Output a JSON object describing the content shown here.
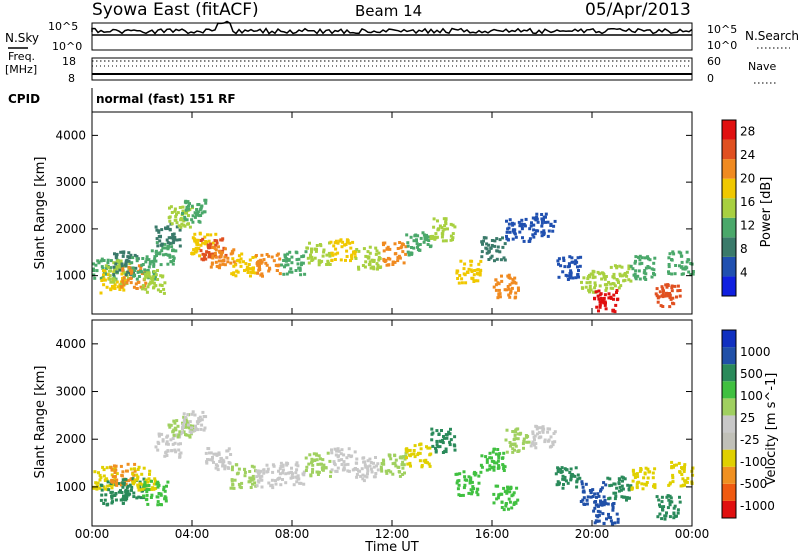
{
  "header": {
    "station": "Syowa East (fitACF)",
    "beam": "Beam 14",
    "date": "05/Apr/2013"
  },
  "top_panels": {
    "nsky_label": "N.Sky",
    "nsearch_label": "N.Search",
    "noise_ticks_left": [
      "10^5",
      "10^0"
    ],
    "noise_ticks_right": [
      "10^5",
      "10^0"
    ],
    "freq_label": "Freq.",
    "freq_unit": "[MHz]",
    "freq_ticks": [
      "18",
      "8"
    ],
    "nave_label": "Nave",
    "nave_ticks": [
      "60",
      "0"
    ],
    "cpid_label": "CPID",
    "cpid_value": "normal (fast) 151 RF"
  },
  "colors": {
    "power": [
      "#1020e0",
      "#2050b0",
      "#3a7a6a",
      "#4aa86a",
      "#a8d040",
      "#f0c800",
      "#f08a20",
      "#e05020",
      "#e01010"
    ],
    "velocity": [
      "#e01010",
      "#f05a10",
      "#f09020",
      "#e0d000",
      "#c0c0b8",
      "#c8c8c8",
      "#a0d060",
      "#40c040",
      "#2a8a5a",
      "#2050a8",
      "#1030c0"
    ]
  },
  "chart_data": [
    {
      "type": "heatmap",
      "title": "",
      "xlabel": "",
      "ylabel": "Slant Range [km]",
      "x_ticks": [
        "00:00",
        "04:00",
        "08:00",
        "12:00",
        "16:00",
        "20:00",
        "00:00"
      ],
      "xlim": [
        0,
        24
      ],
      "ylim": [
        180,
        4500
      ],
      "y_ticks": [
        1000,
        2000,
        3000,
        4000
      ],
      "colorbar": {
        "label": "Power [dB]",
        "ticks": [
          "4",
          "8",
          "12",
          "16",
          "20",
          "24",
          "28"
        ],
        "range": [
          0,
          30
        ]
      },
      "grid": false,
      "series": [
        {
          "points": [
            [
              0.5,
              1200,
              10
            ],
            [
              0.8,
              900,
              18
            ],
            [
              1.0,
              1100,
              14
            ],
            [
              1.3,
              1300,
              8
            ],
            [
              1.6,
              1000,
              22
            ],
            [
              2.0,
              1200,
              12
            ],
            [
              2.4,
              900,
              16
            ],
            [
              2.8,
              1500,
              10
            ],
            [
              3.0,
              1900,
              8
            ],
            [
              3.5,
              2300,
              14
            ],
            [
              4.0,
              2400,
              10
            ],
            [
              4.4,
              1700,
              18
            ],
            [
              4.8,
              1600,
              24
            ],
            [
              5.2,
              1400,
              20
            ],
            [
              6.0,
              1250,
              18
            ],
            [
              7.0,
              1250,
              22
            ],
            [
              8.0,
              1300,
              12
            ],
            [
              9.0,
              1500,
              16
            ],
            [
              10.0,
              1600,
              18
            ],
            [
              11.0,
              1400,
              14
            ],
            [
              12.0,
              1500,
              20
            ],
            [
              13.0,
              1700,
              12
            ],
            [
              14.0,
              2000,
              16
            ],
            [
              15.0,
              1100,
              18
            ],
            [
              16.0,
              1600,
              8
            ],
            [
              16.5,
              800,
              20
            ],
            [
              17.0,
              2000,
              6
            ],
            [
              18.0,
              2100,
              4
            ],
            [
              19.0,
              1200,
              6
            ],
            [
              20.0,
              900,
              14
            ],
            [
              20.5,
              500,
              28
            ],
            [
              21.0,
              1000,
              16
            ],
            [
              22.0,
              1200,
              12
            ],
            [
              23.0,
              600,
              24
            ],
            [
              23.5,
              1300,
              10
            ]
          ]
        }
      ]
    },
    {
      "type": "heatmap",
      "title": "",
      "xlabel": "Time UT",
      "ylabel": "Slant Range [km]",
      "x_ticks": [
        "00:00",
        "04:00",
        "08:00",
        "12:00",
        "16:00",
        "20:00",
        "00:00"
      ],
      "xlim": [
        0,
        24
      ],
      "ylim": [
        180,
        4500
      ],
      "y_ticks": [
        1000,
        2000,
        3000,
        4000
      ],
      "colorbar": {
        "label": "Velocity [m s^-1]",
        "ticks": [
          "1000",
          "500",
          "100",
          "25",
          "-25",
          "-100",
          "-500",
          "-1000"
        ]
      },
      "grid": false,
      "series": [
        {
          "points": [
            [
              0.5,
              1200,
              -200
            ],
            [
              0.8,
              900,
              300
            ],
            [
              1.2,
              1300,
              -600
            ],
            [
              1.6,
              1000,
              200
            ],
            [
              2.0,
              1200,
              -150
            ],
            [
              2.5,
              900,
              60
            ],
            [
              3.0,
              1900,
              0
            ],
            [
              3.5,
              2300,
              10
            ],
            [
              4.0,
              2400,
              -10
            ],
            [
              5.0,
              1600,
              0
            ],
            [
              6.0,
              1250,
              5
            ],
            [
              7.0,
              1250,
              -5
            ],
            [
              8.0,
              1300,
              0
            ],
            [
              9.0,
              1500,
              10
            ],
            [
              10.0,
              1600,
              -10
            ],
            [
              11.0,
              1400,
              0
            ],
            [
              12.0,
              1500,
              5
            ],
            [
              13.0,
              1700,
              -300
            ],
            [
              14.0,
              2000,
              150
            ],
            [
              15.0,
              1100,
              80
            ],
            [
              16.0,
              1600,
              50
            ],
            [
              16.5,
              800,
              60
            ],
            [
              17.0,
              2000,
              10
            ],
            [
              18.0,
              2100,
              0
            ],
            [
              19.0,
              1200,
              200
            ],
            [
              20.0,
              900,
              700
            ],
            [
              20.5,
              500,
              900
            ],
            [
              21.0,
              1000,
              120
            ],
            [
              22.0,
              1200,
              -400
            ],
            [
              23.0,
              600,
              400
            ],
            [
              23.5,
              1300,
              -200
            ]
          ]
        }
      ]
    }
  ]
}
